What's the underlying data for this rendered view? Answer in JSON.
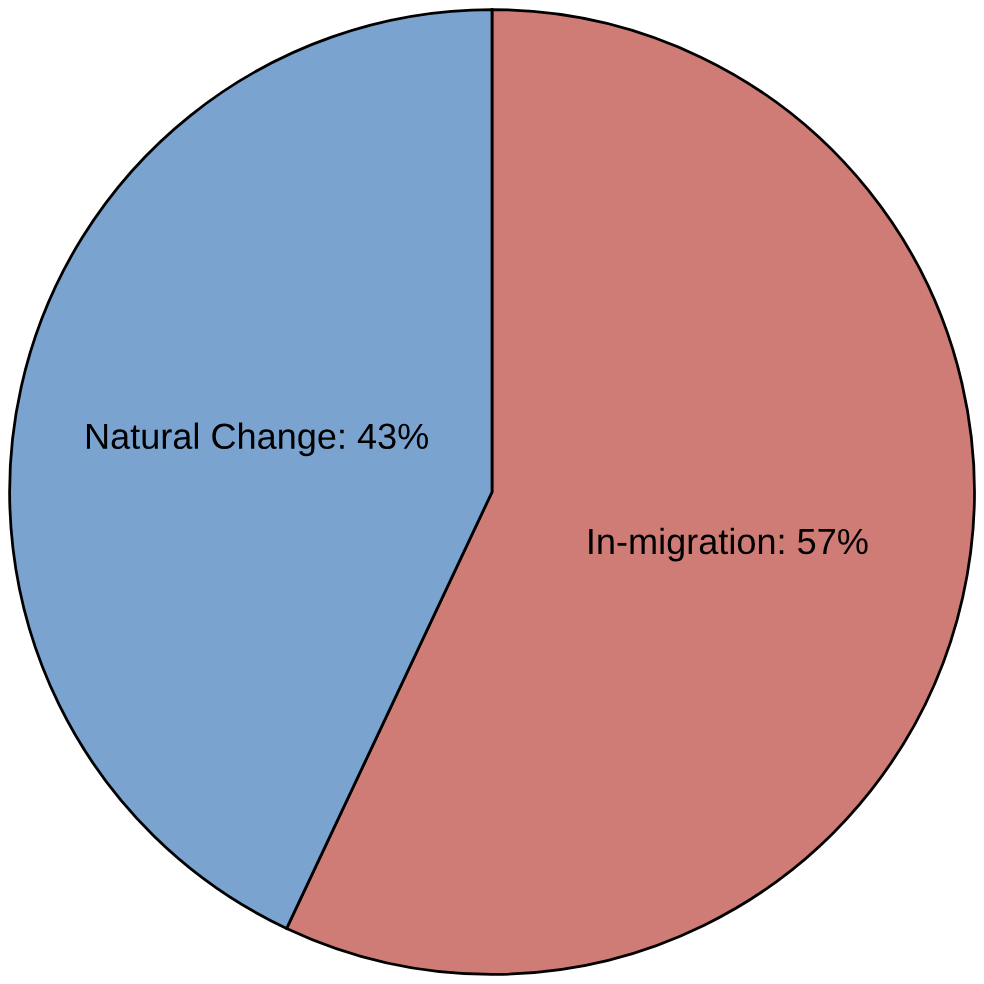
{
  "chart_data": {
    "type": "pie",
    "categories": [
      "In-migration",
      "Natural Change"
    ],
    "values": [
      57,
      43
    ],
    "value_labels": [
      "57%",
      "43%"
    ],
    "colors": [
      "#d07c76",
      "#7aa3cf"
    ]
  }
}
